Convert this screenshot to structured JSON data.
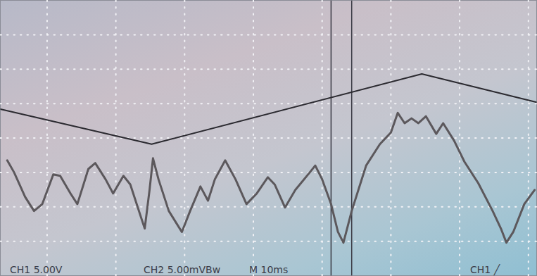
{
  "chart_data": {
    "type": "line",
    "xlim": [
      -6.8,
      71.2
    ],
    "xticks": [
      0,
      10,
      20,
      30,
      40,
      50,
      60,
      70
    ],
    "ylim": [
      -4,
      4
    ],
    "yticks": [
      -3,
      -2,
      -1,
      0,
      1,
      2,
      3
    ],
    "grid": true,
    "tick_labels": false,
    "cursors": [
      41.3,
      44.3
    ],
    "annotations": [
      "CH1 5.00V",
      "CH2 5.00mVBw",
      "M 10ms",
      "CH1 ╱"
    ],
    "series": [
      {
        "color": "#2b2a30",
        "x": [
          -6.8,
          15.2,
          54.5,
          71.2
        ],
        "values": [
          0.84,
          -0.18,
          1.86,
          1.04
        ]
      },
      {
        "color": "#5c585c",
        "x": [
          -5.8,
          -4.8,
          -3.2,
          -1.9,
          -0.7,
          0.9,
          1.9,
          3.4,
          4.4,
          6.0,
          7.0,
          8.5,
          9.6,
          11.1,
          12.1,
          13.7,
          14.2,
          14.9,
          15.4,
          16.2,
          17.7,
          19.6,
          20.8,
          22.3,
          23.4,
          24.4,
          25.9,
          27.4,
          29.0,
          30.5,
          32.1,
          33.1,
          34.6,
          36.1,
          38.2,
          39.0,
          40.0,
          41.3,
          42.3,
          43.1,
          44.3,
          46.4,
          48.4,
          50.0,
          51.0,
          52.0,
          53.0,
          54.0,
          55.1,
          56.6,
          57.6,
          59.2,
          60.7,
          62.7,
          64.8,
          66.0,
          66.8,
          67.8,
          69.4,
          70.9
        ],
        "values": [
          -0.65,
          -1.0,
          -1.71,
          -2.12,
          -1.92,
          -1.06,
          -1.1,
          -1.61,
          -1.92,
          -0.9,
          -0.73,
          -1.2,
          -1.61,
          -1.1,
          -1.35,
          -2.33,
          -2.63,
          -1.51,
          -0.59,
          -1.2,
          -2.12,
          -2.73,
          -2.12,
          -1.41,
          -1.82,
          -1.2,
          -0.65,
          -1.2,
          -1.92,
          -1.61,
          -1.14,
          -1.35,
          -2.02,
          -1.51,
          -1.0,
          -0.8,
          -1.2,
          -1.92,
          -2.73,
          -3.04,
          -2.12,
          -0.8,
          -0.18,
          0.16,
          0.73,
          0.43,
          0.57,
          0.43,
          0.63,
          0.12,
          0.43,
          -0.08,
          -0.69,
          -1.31,
          -2.12,
          -2.63,
          -3.04,
          -2.73,
          -1.92,
          -1.51
        ]
      }
    ]
  }
}
